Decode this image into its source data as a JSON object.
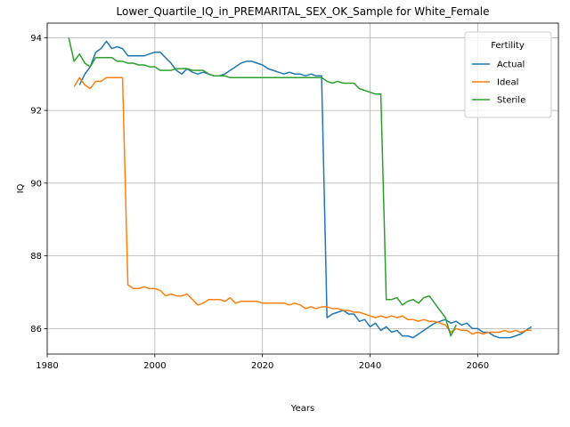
{
  "chart_data": {
    "type": "line",
    "title": "Lower_Quartile_IQ_in_PREMARITAL_SEX_OK_Sample for White_Female",
    "xlabel": "Years",
    "ylabel": "IQ",
    "xlim": [
      1980,
      2075
    ],
    "ylim": [
      85.3,
      94.4
    ],
    "xticks": [
      1980,
      2000,
      2020,
      2040,
      2060
    ],
    "yticks": [
      86,
      88,
      90,
      92,
      94
    ],
    "grid": true,
    "legend": {
      "title": "Fertility",
      "placement": "top-right"
    },
    "series": [
      {
        "name": "Actual",
        "color": "#1f77b4",
        "points": [
          [
            1986,
            92.7
          ],
          [
            1987,
            93.0
          ],
          [
            1988,
            93.2
          ],
          [
            1989,
            93.6
          ],
          [
            1990,
            93.7
          ],
          [
            1991,
            93.9
          ],
          [
            1992,
            93.7
          ],
          [
            1993,
            93.75
          ],
          [
            1994,
            93.7
          ],
          [
            1995,
            93.5
          ],
          [
            1996,
            93.5
          ],
          [
            1997,
            93.5
          ],
          [
            1998,
            93.5
          ],
          [
            1999,
            93.55
          ],
          [
            2000,
            93.6
          ],
          [
            2001,
            93.6
          ],
          [
            2002,
            93.45
          ],
          [
            2003,
            93.3
          ],
          [
            2004,
            93.1
          ],
          [
            2005,
            93.0
          ],
          [
            2006,
            93.15
          ],
          [
            2007,
            93.05
          ],
          [
            2008,
            93.0
          ],
          [
            2009,
            93.05
          ],
          [
            2010,
            93.0
          ],
          [
            2011,
            92.95
          ],
          [
            2012,
            92.95
          ],
          [
            2013,
            93.0
          ],
          [
            2014,
            93.1
          ],
          [
            2015,
            93.2
          ],
          [
            2016,
            93.3
          ],
          [
            2017,
            93.35
          ],
          [
            2018,
            93.35
          ],
          [
            2019,
            93.3
          ],
          [
            2020,
            93.25
          ],
          [
            2021,
            93.15
          ],
          [
            2022,
            93.1
          ],
          [
            2023,
            93.05
          ],
          [
            2024,
            93.0
          ],
          [
            2025,
            93.05
          ],
          [
            2026,
            93.0
          ],
          [
            2027,
            93.0
          ],
          [
            2028,
            92.95
          ],
          [
            2029,
            93.0
          ],
          [
            2030,
            92.95
          ],
          [
            2031,
            92.95
          ],
          [
            2032,
            86.3
          ],
          [
            2033,
            86.4
          ],
          [
            2034,
            86.45
          ],
          [
            2035,
            86.5
          ],
          [
            2036,
            86.4
          ],
          [
            2037,
            86.4
          ],
          [
            2038,
            86.2
          ],
          [
            2039,
            86.25
          ],
          [
            2040,
            86.05
          ],
          [
            2041,
            86.15
          ],
          [
            2042,
            85.95
          ],
          [
            2043,
            86.05
          ],
          [
            2044,
            85.9
          ],
          [
            2045,
            85.95
          ],
          [
            2046,
            85.8
          ],
          [
            2047,
            85.8
          ],
          [
            2048,
            85.75
          ],
          [
            2049,
            85.85
          ],
          [
            2050,
            85.95
          ],
          [
            2051,
            86.05
          ],
          [
            2052,
            86.15
          ],
          [
            2053,
            86.2
          ],
          [
            2054,
            86.25
          ],
          [
            2055,
            86.15
          ],
          [
            2056,
            86.2
          ],
          [
            2057,
            86.1
          ],
          [
            2058,
            86.15
          ],
          [
            2059,
            86.0
          ],
          [
            2060,
            86.0
          ],
          [
            2061,
            85.9
          ],
          [
            2062,
            85.9
          ],
          [
            2063,
            85.8
          ],
          [
            2064,
            85.75
          ],
          [
            2065,
            85.75
          ],
          [
            2066,
            85.75
          ],
          [
            2067,
            85.8
          ],
          [
            2068,
            85.85
          ],
          [
            2069,
            85.95
          ],
          [
            2070,
            86.05
          ]
        ]
      },
      {
        "name": "Ideal",
        "color": "#ff7f0e",
        "points": [
          [
            1985,
            92.65
          ],
          [
            1986,
            92.9
          ],
          [
            1987,
            92.7
          ],
          [
            1988,
            92.6
          ],
          [
            1989,
            92.8
          ],
          [
            1990,
            92.8
          ],
          [
            1991,
            92.9
          ],
          [
            1992,
            92.9
          ],
          [
            1993,
            92.9
          ],
          [
            1994,
            92.9
          ],
          [
            1995,
            87.2
          ],
          [
            1996,
            87.1
          ],
          [
            1997,
            87.1
          ],
          [
            1998,
            87.15
          ],
          [
            1999,
            87.1
          ],
          [
            2000,
            87.1
          ],
          [
            2001,
            87.05
          ],
          [
            2002,
            86.9
          ],
          [
            2003,
            86.95
          ],
          [
            2004,
            86.9
          ],
          [
            2005,
            86.9
          ],
          [
            2006,
            86.95
          ],
          [
            2007,
            86.8
          ],
          [
            2008,
            86.65
          ],
          [
            2009,
            86.7
          ],
          [
            2010,
            86.8
          ],
          [
            2011,
            86.8
          ],
          [
            2012,
            86.8
          ],
          [
            2013,
            86.75
          ],
          [
            2014,
            86.85
          ],
          [
            2015,
            86.7
          ],
          [
            2016,
            86.75
          ],
          [
            2017,
            86.75
          ],
          [
            2018,
            86.75
          ],
          [
            2019,
            86.75
          ],
          [
            2020,
            86.7
          ],
          [
            2021,
            86.7
          ],
          [
            2022,
            86.7
          ],
          [
            2023,
            86.7
          ],
          [
            2024,
            86.7
          ],
          [
            2025,
            86.65
          ],
          [
            2026,
            86.7
          ],
          [
            2027,
            86.65
          ],
          [
            2028,
            86.55
          ],
          [
            2029,
            86.6
          ],
          [
            2030,
            86.55
          ],
          [
            2031,
            86.6
          ],
          [
            2032,
            86.6
          ],
          [
            2033,
            86.55
          ],
          [
            2034,
            86.55
          ],
          [
            2035,
            86.5
          ],
          [
            2036,
            86.5
          ],
          [
            2037,
            86.45
          ],
          [
            2038,
            86.45
          ],
          [
            2039,
            86.4
          ],
          [
            2040,
            86.35
          ],
          [
            2041,
            86.3
          ],
          [
            2042,
            86.35
          ],
          [
            2043,
            86.3
          ],
          [
            2044,
            86.35
          ],
          [
            2045,
            86.3
          ],
          [
            2046,
            86.35
          ],
          [
            2047,
            86.25
          ],
          [
            2048,
            86.25
          ],
          [
            2049,
            86.2
          ],
          [
            2050,
            86.25
          ],
          [
            2051,
            86.2
          ],
          [
            2052,
            86.2
          ],
          [
            2053,
            86.15
          ],
          [
            2054,
            86.1
          ],
          [
            2055,
            85.9
          ],
          [
            2056,
            86.0
          ],
          [
            2057,
            85.95
          ],
          [
            2058,
            85.95
          ],
          [
            2059,
            85.85
          ],
          [
            2060,
            85.9
          ],
          [
            2061,
            85.85
          ],
          [
            2062,
            85.9
          ],
          [
            2063,
            85.9
          ],
          [
            2064,
            85.9
          ],
          [
            2065,
            85.95
          ],
          [
            2066,
            85.9
          ],
          [
            2067,
            85.95
          ],
          [
            2068,
            85.9
          ],
          [
            2069,
            85.95
          ],
          [
            2070,
            85.95
          ]
        ]
      },
      {
        "name": "Sterile",
        "color": "#2ca02c",
        "points": [
          [
            1984,
            94.0
          ],
          [
            1985,
            93.35
          ],
          [
            1986,
            93.55
          ],
          [
            1987,
            93.3
          ],
          [
            1988,
            93.2
          ],
          [
            1989,
            93.45
          ],
          [
            1990,
            93.45
          ],
          [
            1991,
            93.45
          ],
          [
            1992,
            93.45
          ],
          [
            1993,
            93.35
          ],
          [
            1994,
            93.35
          ],
          [
            1995,
            93.3
          ],
          [
            1996,
            93.3
          ],
          [
            1997,
            93.25
          ],
          [
            1998,
            93.25
          ],
          [
            1999,
            93.2
          ],
          [
            2000,
            93.2
          ],
          [
            2001,
            93.1
          ],
          [
            2002,
            93.1
          ],
          [
            2003,
            93.1
          ],
          [
            2004,
            93.15
          ],
          [
            2005,
            93.15
          ],
          [
            2006,
            93.15
          ],
          [
            2007,
            93.1
          ],
          [
            2008,
            93.1
          ],
          [
            2009,
            93.1
          ],
          [
            2010,
            93.0
          ],
          [
            2011,
            92.95
          ],
          [
            2012,
            92.95
          ],
          [
            2013,
            92.95
          ],
          [
            2014,
            92.9
          ],
          [
            2015,
            92.9
          ],
          [
            2016,
            92.9
          ],
          [
            2017,
            92.9
          ],
          [
            2018,
            92.9
          ],
          [
            2019,
            92.9
          ],
          [
            2020,
            92.9
          ],
          [
            2021,
            92.9
          ],
          [
            2022,
            92.9
          ],
          [
            2023,
            92.9
          ],
          [
            2024,
            92.9
          ],
          [
            2025,
            92.9
          ],
          [
            2026,
            92.9
          ],
          [
            2027,
            92.9
          ],
          [
            2028,
            92.9
          ],
          [
            2029,
            92.9
          ],
          [
            2030,
            92.9
          ],
          [
            2031,
            92.9
          ],
          [
            2032,
            92.8
          ],
          [
            2033,
            92.75
          ],
          [
            2034,
            92.8
          ],
          [
            2035,
            92.75
          ],
          [
            2036,
            92.75
          ],
          [
            2037,
            92.75
          ],
          [
            2038,
            92.6
          ],
          [
            2039,
            92.55
          ],
          [
            2040,
            92.5
          ],
          [
            2041,
            92.45
          ],
          [
            2042,
            92.45
          ],
          [
            2043,
            86.8
          ],
          [
            2044,
            86.8
          ],
          [
            2045,
            86.85
          ],
          [
            2046,
            86.65
          ],
          [
            2047,
            86.75
          ],
          [
            2048,
            86.8
          ],
          [
            2049,
            86.7
          ],
          [
            2050,
            86.85
          ],
          [
            2051,
            86.9
          ],
          [
            2052,
            86.7
          ],
          [
            2053,
            86.5
          ],
          [
            2054,
            86.3
          ],
          [
            2055,
            85.8
          ],
          [
            2056,
            86.1
          ]
        ]
      }
    ]
  }
}
